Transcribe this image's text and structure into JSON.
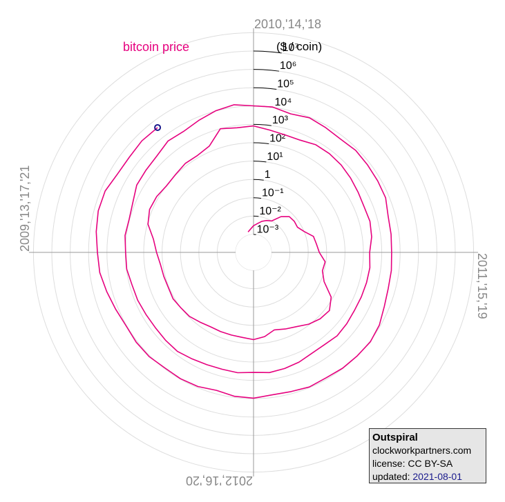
{
  "chart_data": {
    "type": "polar_spiral",
    "series": [
      {
        "name": "bitcoin price",
        "color": "#e6007e",
        "x": [
          "2009-11",
          "2009-12",
          "2010-01",
          "2010-02",
          "2010-03",
          "2010-04",
          "2010-05",
          "2010-06",
          "2010-07",
          "2010-08",
          "2010-09",
          "2010-10",
          "2010-11",
          "2010-12",
          "2011-01",
          "2011-02",
          "2011-03",
          "2011-04",
          "2011-05",
          "2011-06",
          "2011-07",
          "2011-08",
          "2011-09",
          "2011-10",
          "2011-11",
          "2011-12",
          "2012-01",
          "2012-02",
          "2012-03",
          "2012-04",
          "2012-05",
          "2012-06",
          "2012-07",
          "2012-08",
          "2012-09",
          "2012-10",
          "2012-11",
          "2012-12",
          "2013-01",
          "2013-02",
          "2013-03",
          "2013-04",
          "2013-05",
          "2013-06",
          "2013-07",
          "2013-08",
          "2013-09",
          "2013-10",
          "2013-11",
          "2013-12",
          "2014-01",
          "2014-02",
          "2014-03",
          "2014-04",
          "2014-05",
          "2014-06",
          "2014-07",
          "2014-08",
          "2014-09",
          "2014-10",
          "2014-11",
          "2014-12",
          "2015-01",
          "2015-02",
          "2015-03",
          "2015-04",
          "2015-05",
          "2015-06",
          "2015-07",
          "2015-08",
          "2015-09",
          "2015-10",
          "2015-11",
          "2015-12",
          "2016-01",
          "2016-02",
          "2016-03",
          "2016-04",
          "2016-05",
          "2016-06",
          "2016-07",
          "2016-08",
          "2016-09",
          "2016-10",
          "2016-11",
          "2016-12",
          "2017-01",
          "2017-02",
          "2017-03",
          "2017-04",
          "2017-05",
          "2017-06",
          "2017-07",
          "2017-08",
          "2017-09",
          "2017-10",
          "2017-11",
          "2017-12",
          "2018-01",
          "2018-02",
          "2018-03",
          "2018-04",
          "2018-05",
          "2018-06",
          "2018-07",
          "2018-08",
          "2018-09",
          "2018-10",
          "2018-11",
          "2018-12",
          "2019-01",
          "2019-02",
          "2019-03",
          "2019-04",
          "2019-05",
          "2019-06",
          "2019-07",
          "2019-08",
          "2019-09",
          "2019-10",
          "2019-11",
          "2019-12",
          "2020-01",
          "2020-02",
          "2020-03",
          "2020-04",
          "2020-05",
          "2020-06",
          "2020-07",
          "2020-08",
          "2020-09",
          "2020-10",
          "2020-11",
          "2020-12",
          "2021-01",
          "2021-02",
          "2021-03",
          "2021-04",
          "2021-05",
          "2021-06",
          "2021-07",
          "2021-08"
        ],
        "values": [
          0.0015,
          0.002,
          0.003,
          0.004,
          0.006,
          0.008,
          0.01,
          0.03,
          0.06,
          0.065,
          0.06,
          0.1,
          0.25,
          0.3,
          0.4,
          0.9,
          0.8,
          1.5,
          8,
          17,
          14,
          9,
          5,
          3.5,
          2.5,
          4.5,
          6,
          5,
          4.9,
          5,
          5.1,
          6.5,
          9,
          10,
          12,
          11,
          12,
          13.5,
          20,
          33,
          93,
          140,
          129,
          97,
          106,
          135,
          133,
          200,
          1000,
          750,
          830,
          560,
          450,
          445,
          630,
          640,
          580,
          480,
          390,
          340,
          380,
          320,
          220,
          255,
          245,
          235,
          230,
          260,
          285,
          230,
          236,
          314,
          378,
          430,
          370,
          437,
          416,
          448,
          530,
          670,
          625,
          575,
          610,
          700,
          742,
          964,
          970,
          1190,
          1070,
          1350,
          2300,
          2480,
          2870,
          4700,
          4340,
          6470,
          10230,
          13860,
          10220,
          10330,
          6920,
          9240,
          7500,
          6390,
          7730,
          7030,
          6630,
          6370,
          4040,
          3740,
          3460,
          3850,
          4100,
          5320,
          8570,
          10820,
          10080,
          9630,
          8300,
          9200,
          7570,
          7190,
          9350,
          8600,
          6440,
          8660,
          9460,
          9140,
          11350,
          11680,
          10780,
          13800,
          19700,
          29000,
          33100,
          45200,
          58900,
          57700,
          37300,
          35000,
          41500,
          39900
        ]
      }
    ],
    "marker_color": "#1a1a8c",
    "rlim": [
      0.001,
      100000000
    ],
    "rlog": true,
    "rticks": [
      {
        "value": 0.001,
        "label": "10⁻³"
      },
      {
        "value": 0.01,
        "label": "10⁻²"
      },
      {
        "value": 0.1,
        "label": "10⁻¹"
      },
      1,
      {
        "value": 10,
        "label": "10¹"
      },
      {
        "value": 100,
        "label": "10²"
      },
      {
        "value": 1000,
        "label": "10³"
      },
      {
        "value": 10000,
        "label": "10⁴"
      },
      {
        "value": 100000,
        "label": "10⁵"
      },
      {
        "value": 1000000,
        "label": "10⁶"
      },
      {
        "value": 10000000,
        "label": "10⁷"
      }
    ],
    "r_label": "($ / coin)",
    "thetalim": [
      2010,
      2014
    ],
    "theta_direction": "clockwise",
    "thetaticks": [
      {
        "value": 2009,
        "label": "2009,'13,'17,'21"
      },
      {
        "value": 2010,
        "label": "2010,'14,'18"
      },
      {
        "value": 2011,
        "label": "2011,'15,'19"
      },
      {
        "value": 2012,
        "label": "2012,'16,'20"
      }
    ],
    "grid": true
  },
  "credit": {
    "title": "Outspiral",
    "site": "clockworkpartners.com",
    "license": "license: CC BY-SA",
    "updated_label": "updated:",
    "updated": "2021-08-01"
  }
}
